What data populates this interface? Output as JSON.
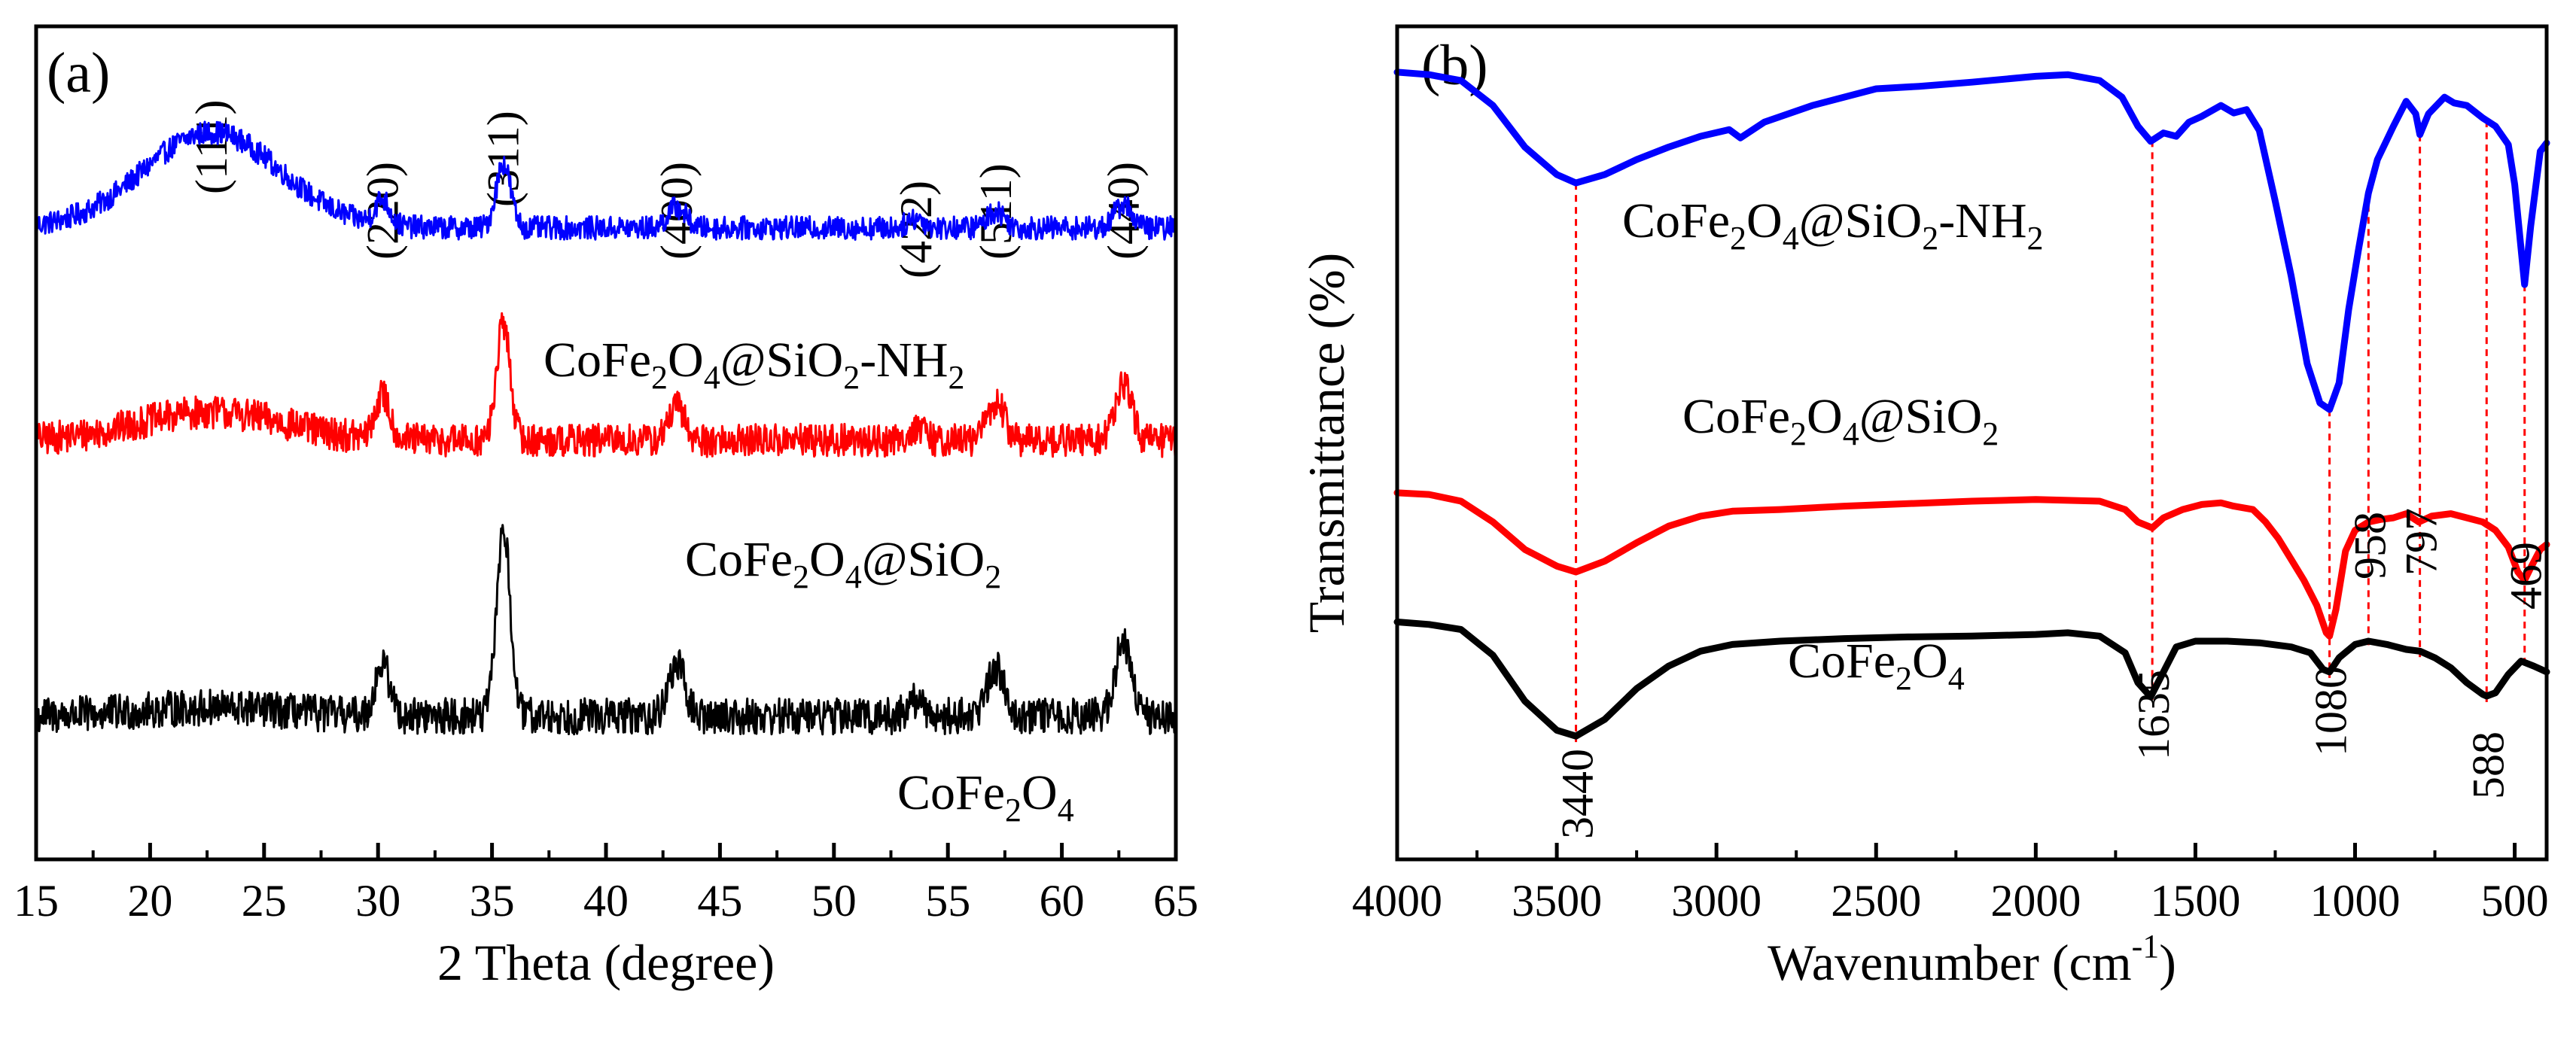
{
  "chart_data": [
    {
      "panel": "(a)",
      "type": "line",
      "xlabel": "2 Theta (degree)",
      "ylabel": "",
      "xlim": [
        15,
        65
      ],
      "ylim": [
        0,
        1
      ],
      "xticks": [
        "15",
        "20",
        "25",
        "30",
        "35",
        "40",
        "45",
        "50",
        "55",
        "60",
        "65"
      ],
      "peak_labels": [
        {
          "text": "(111)",
          "x": 22.7
        },
        {
          "text": "(220)",
          "x": 30.2
        },
        {
          "text": "(311)",
          "x": 35.5
        },
        {
          "text": "(400)",
          "x": 43.1
        },
        {
          "text": "(422)",
          "x": 53.6
        },
        {
          "text": "(511)",
          "x": 57.1
        },
        {
          "text": "(440)",
          "x": 62.7
        }
      ],
      "series": [
        {
          "name": "CoFe2O4@SiO2-NH2",
          "label_parts": [
            "CoFe",
            "2",
            "O",
            "4",
            "@SiO",
            "2",
            "-NH",
            "2"
          ],
          "color": "#0000ff",
          "baseline": 0.758,
          "noise": 0.014,
          "broad_hump": {
            "center": 22.7,
            "height": 0.115,
            "width": 4.2
          },
          "peaks": [
            {
              "x": 30.2,
              "h": 0.03,
              "w": 0.45
            },
            {
              "x": 35.5,
              "h": 0.078,
              "w": 0.45
            },
            {
              "x": 43.1,
              "h": 0.025,
              "w": 0.55
            },
            {
              "x": 53.6,
              "h": 0.012,
              "w": 0.5
            },
            {
              "x": 57.1,
              "h": 0.02,
              "w": 0.55
            },
            {
              "x": 62.7,
              "h": 0.028,
              "w": 0.55
            }
          ]
        },
        {
          "name": "CoFe2O4@SiO2",
          "label_parts": [
            "CoFe",
            "2",
            "O",
            "4",
            "@SiO",
            "2"
          ],
          "color": "#ff0000",
          "baseline": 0.503,
          "noise": 0.02,
          "broad_hump": {
            "center": 22.7,
            "height": 0.034,
            "width": 4.5
          },
          "peaks": [
            {
              "x": 30.2,
              "h": 0.052,
              "w": 0.45
            },
            {
              "x": 35.5,
              "h": 0.14,
              "w": 0.42
            },
            {
              "x": 43.1,
              "h": 0.04,
              "w": 0.5
            },
            {
              "x": 53.6,
              "h": 0.014,
              "w": 0.5
            },
            {
              "x": 57.1,
              "h": 0.045,
              "w": 0.55
            },
            {
              "x": 62.7,
              "h": 0.068,
              "w": 0.5
            }
          ]
        },
        {
          "name": "CoFe2O4",
          "label_parts": [
            "CoFe",
            "2",
            "O",
            "4"
          ],
          "color": "#000000",
          "baseline": 0.172,
          "noise": 0.022,
          "broad_hump": {
            "center": 22.7,
            "height": 0.01,
            "width": 4.5
          },
          "peaks": [
            {
              "x": 30.2,
              "h": 0.062,
              "w": 0.45
            },
            {
              "x": 35.5,
              "h": 0.225,
              "w": 0.42
            },
            {
              "x": 43.1,
              "h": 0.062,
              "w": 0.5
            },
            {
              "x": 53.6,
              "h": 0.018,
              "w": 0.5
            },
            {
              "x": 57.1,
              "h": 0.058,
              "w": 0.55
            },
            {
              "x": 62.7,
              "h": 0.09,
              "w": 0.5
            }
          ]
        }
      ]
    },
    {
      "panel": "(b)",
      "type": "line",
      "xlabel": "Wavenumber (cm",
      "xlabel_sup": "-1",
      "xlabel_end": ")",
      "ylabel": "Transmittance (%)",
      "xlim": [
        4000,
        400
      ],
      "ylim": [
        0,
        1
      ],
      "xticks": [
        "4000",
        "3500",
        "3000",
        "2500",
        "2000",
        "1500",
        "1000",
        "500"
      ],
      "reference_lines": [
        {
          "text": "3440",
          "x": 3440
        },
        {
          "text": "1635",
          "x": 1635
        },
        {
          "text": "1080",
          "x": 1080
        },
        {
          "text": "958",
          "x": 958
        },
        {
          "text": "797",
          "x": 797
        },
        {
          "text": "588",
          "x": 588
        },
        {
          "text": "469",
          "x": 469
        }
      ],
      "series": [
        {
          "name": "CoFe2O4@SiO2-NH2",
          "label_parts": [
            "CoFe",
            "2",
            "O",
            "4",
            "@SiO",
            "2",
            "-NH",
            "2"
          ],
          "color": "#0000ff",
          "points": [
            [
              4000,
              0.945
            ],
            [
              3900,
              0.942
            ],
            [
              3800,
              0.935
            ],
            [
              3700,
              0.905
            ],
            [
              3600,
              0.855
            ],
            [
              3500,
              0.822
            ],
            [
              3440,
              0.812
            ],
            [
              3350,
              0.822
            ],
            [
              3250,
              0.84
            ],
            [
              3150,
              0.855
            ],
            [
              3050,
              0.868
            ],
            [
              2960,
              0.876
            ],
            [
              2925,
              0.866
            ],
            [
              2850,
              0.885
            ],
            [
              2700,
              0.905
            ],
            [
              2500,
              0.925
            ],
            [
              2365,
              0.928
            ],
            [
              2200,
              0.933
            ],
            [
              2000,
              0.94
            ],
            [
              1900,
              0.942
            ],
            [
              1800,
              0.935
            ],
            [
              1730,
              0.915
            ],
            [
              1680,
              0.88
            ],
            [
              1640,
              0.862
            ],
            [
              1600,
              0.872
            ],
            [
              1560,
              0.868
            ],
            [
              1520,
              0.885
            ],
            [
              1480,
              0.892
            ],
            [
              1420,
              0.905
            ],
            [
              1380,
              0.896
            ],
            [
              1340,
              0.9
            ],
            [
              1300,
              0.875
            ],
            [
              1250,
              0.79
            ],
            [
              1200,
              0.7
            ],
            [
              1150,
              0.595
            ],
            [
              1110,
              0.548
            ],
            [
              1080,
              0.54
            ],
            [
              1050,
              0.572
            ],
            [
              1020,
              0.66
            ],
            [
              990,
              0.73
            ],
            [
              958,
              0.8
            ],
            [
              930,
              0.84
            ],
            [
              880,
              0.88
            ],
            [
              840,
              0.91
            ],
            [
              810,
              0.895
            ],
            [
              797,
              0.87
            ],
            [
              770,
              0.895
            ],
            [
              720,
              0.915
            ],
            [
              690,
              0.908
            ],
            [
              650,
              0.905
            ],
            [
              600,
              0.89
            ],
            [
              560,
              0.88
            ],
            [
              520,
              0.858
            ],
            [
              500,
              0.81
            ],
            [
              469,
              0.69
            ],
            [
              450,
              0.76
            ],
            [
              420,
              0.85
            ],
            [
              400,
              0.86
            ]
          ]
        },
        {
          "name": "CoFe2O4@SiO2",
          "label_parts": [
            "CoFe",
            "2",
            "O",
            "4",
            "@SiO",
            "2"
          ],
          "color": "#ff0000",
          "points": [
            [
              4000,
              0.44
            ],
            [
              3900,
              0.438
            ],
            [
              3800,
              0.43
            ],
            [
              3700,
              0.405
            ],
            [
              3600,
              0.372
            ],
            [
              3500,
              0.352
            ],
            [
              3440,
              0.345
            ],
            [
              3350,
              0.358
            ],
            [
              3250,
              0.38
            ],
            [
              3150,
              0.4
            ],
            [
              3050,
              0.412
            ],
            [
              2950,
              0.418
            ],
            [
              2800,
              0.42
            ],
            [
              2600,
              0.424
            ],
            [
              2400,
              0.427
            ],
            [
              2200,
              0.43
            ],
            [
              2000,
              0.432
            ],
            [
              1800,
              0.43
            ],
            [
              1720,
              0.42
            ],
            [
              1680,
              0.405
            ],
            [
              1635,
              0.398
            ],
            [
              1600,
              0.41
            ],
            [
              1540,
              0.42
            ],
            [
              1480,
              0.426
            ],
            [
              1420,
              0.428
            ],
            [
              1380,
              0.424
            ],
            [
              1320,
              0.42
            ],
            [
              1280,
              0.405
            ],
            [
              1240,
              0.385
            ],
            [
              1200,
              0.36
            ],
            [
              1160,
              0.335
            ],
            [
              1120,
              0.305
            ],
            [
              1090,
              0.272
            ],
            [
              1080,
              0.268
            ],
            [
              1060,
              0.3
            ],
            [
              1030,
              0.37
            ],
            [
              1000,
              0.395
            ],
            [
              958,
              0.405
            ],
            [
              920,
              0.408
            ],
            [
              880,
              0.41
            ],
            [
              840,
              0.415
            ],
            [
              800,
              0.405
            ],
            [
              760,
              0.412
            ],
            [
              700,
              0.415
            ],
            [
              650,
              0.41
            ],
            [
              600,
              0.405
            ],
            [
              560,
              0.395
            ],
            [
              520,
              0.375
            ],
            [
              490,
              0.345
            ],
            [
              469,
              0.335
            ],
            [
              450,
              0.35
            ],
            [
              420,
              0.372
            ],
            [
              400,
              0.378
            ]
          ]
        },
        {
          "name": "CoFe2O4",
          "label_parts": [
            "CoFe",
            "2",
            "O",
            "4"
          ],
          "color": "#000000",
          "points": [
            [
              4000,
              0.285
            ],
            [
              3900,
              0.282
            ],
            [
              3800,
              0.276
            ],
            [
              3700,
              0.245
            ],
            [
              3600,
              0.19
            ],
            [
              3500,
              0.155
            ],
            [
              3440,
              0.148
            ],
            [
              3350,
              0.168
            ],
            [
              3250,
              0.205
            ],
            [
              3150,
              0.232
            ],
            [
              3050,
              0.25
            ],
            [
              2950,
              0.258
            ],
            [
              2800,
              0.262
            ],
            [
              2600,
              0.265
            ],
            [
              2400,
              0.267
            ],
            [
              2200,
              0.268
            ],
            [
              2000,
              0.27
            ],
            [
              1900,
              0.272
            ],
            [
              1800,
              0.268
            ],
            [
              1720,
              0.248
            ],
            [
              1680,
              0.212
            ],
            [
              1640,
              0.195
            ],
            [
              1600,
              0.225
            ],
            [
              1560,
              0.255
            ],
            [
              1500,
              0.262
            ],
            [
              1400,
              0.262
            ],
            [
              1300,
              0.26
            ],
            [
              1200,
              0.255
            ],
            [
              1140,
              0.248
            ],
            [
              1100,
              0.228
            ],
            [
              1080,
              0.225
            ],
            [
              1050,
              0.242
            ],
            [
              1000,
              0.258
            ],
            [
              958,
              0.262
            ],
            [
              900,
              0.258
            ],
            [
              840,
              0.252
            ],
            [
              797,
              0.25
            ],
            [
              750,
              0.242
            ],
            [
              700,
              0.23
            ],
            [
              650,
              0.212
            ],
            [
              600,
              0.198
            ],
            [
              588,
              0.196
            ],
            [
              560,
              0.2
            ],
            [
              520,
              0.222
            ],
            [
              480,
              0.238
            ],
            [
              440,
              0.232
            ],
            [
              400,
              0.225
            ]
          ]
        }
      ]
    }
  ]
}
